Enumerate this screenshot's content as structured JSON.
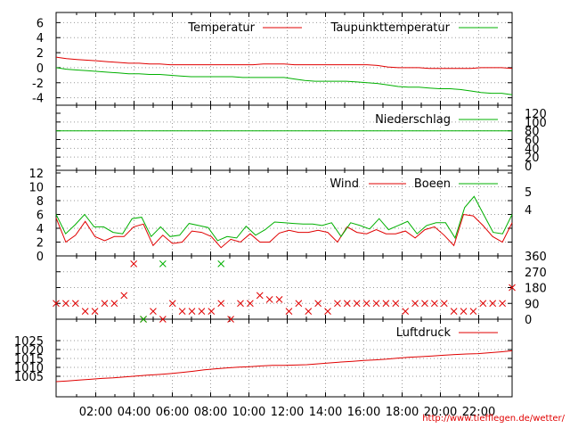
{
  "url_credit": "http://www.tiefflegen.de/wetter/",
  "x_ticks": [
    "02:00",
    "04:00",
    "06:00",
    "08:00",
    "10:00",
    "12:00",
    "14:00",
    "16:00",
    "18:00",
    "20:00",
    "22:00"
  ],
  "colors": {
    "red": "#e00000",
    "green": "#00b000"
  },
  "chart_data": [
    {
      "type": "line",
      "ylim": [
        -4.4,
        6.4
      ],
      "yticks": [
        "6",
        "4",
        "2",
        "0",
        "-2",
        "-4"
      ],
      "legend_position": "top-right",
      "series": [
        {
          "name": "Temperatur",
          "color": "#e00000",
          "values": [
            1.4,
            1.2,
            1.1,
            1.0,
            0.9,
            0.8,
            0.7,
            0.6,
            0.6,
            0.5,
            0.5,
            0.4,
            0.4,
            0.4,
            0.4,
            0.4,
            0.4,
            0.4,
            0.4,
            0.4,
            0.5,
            0.5,
            0.5,
            0.4,
            0.4,
            0.4,
            0.4,
            0.4,
            0.4,
            0.4,
            0.4,
            0.3,
            0.1,
            0.0,
            0.0,
            0.0,
            -0.1,
            -0.1,
            -0.1,
            -0.1,
            -0.1,
            0.0,
            0.0,
            0.0,
            -0.1
          ]
        },
        {
          "name": "Taupunkttemperatur",
          "color": "#00b000",
          "values": [
            0.0,
            -0.2,
            -0.3,
            -0.4,
            -0.5,
            -0.6,
            -0.7,
            -0.8,
            -0.8,
            -0.9,
            -0.9,
            -1.0,
            -1.1,
            -1.2,
            -1.2,
            -1.2,
            -1.2,
            -1.2,
            -1.3,
            -1.3,
            -1.3,
            -1.3,
            -1.3,
            -1.5,
            -1.7,
            -1.8,
            -1.8,
            -1.8,
            -1.8,
            -1.9,
            -2.0,
            -2.1,
            -2.3,
            -2.5,
            -2.6,
            -2.6,
            -2.7,
            -2.8,
            -2.8,
            -2.9,
            -3.1,
            -3.3,
            -3.4,
            -3.4,
            -3.6
          ]
        }
      ]
    },
    {
      "type": "line",
      "ylim": [
        0,
        120
      ],
      "yticks_right": [
        "120",
        "100",
        "80",
        "60",
        "40",
        "20",
        "0"
      ],
      "legend_position": "top-right",
      "series": [
        {
          "name": "Niederschlag",
          "color": "#00b000",
          "values": [
            80,
            80,
            80,
            80,
            80,
            80,
            80,
            80,
            80,
            80,
            80,
            80,
            80,
            80,
            80,
            80,
            80,
            80,
            80,
            80,
            80,
            80,
            80,
            80,
            80,
            80,
            80,
            80,
            80,
            80,
            80,
            80,
            80,
            80,
            80,
            80,
            80,
            80,
            80,
            80,
            80,
            80,
            80,
            80,
            80
          ]
        }
      ]
    },
    {
      "type": "line",
      "ylim": [
        0,
        12
      ],
      "yticks": [
        "12",
        "10",
        "8",
        "6",
        "4",
        "2",
        "0"
      ],
      "yticks_right": [
        "5",
        "4"
      ],
      "legend_position": "top-right",
      "series": [
        {
          "name": "Wind",
          "color": "#e00000",
          "values": [
            5.5,
            2.0,
            3.0,
            5.0,
            2.8,
            2.2,
            2.8,
            2.8,
            4.2,
            4.6,
            1.5,
            3.0,
            1.8,
            2.0,
            3.6,
            3.4,
            2.8,
            1.2,
            2.4,
            2.0,
            3.2,
            2.0,
            2.0,
            3.3,
            3.7,
            3.4,
            3.4,
            3.7,
            3.4,
            2.0,
            4.2,
            3.4,
            3.2,
            3.8,
            3.2,
            3.2,
            3.6,
            2.6,
            3.8,
            4.2,
            3.0,
            1.5,
            6.0,
            5.8,
            4.4,
            2.8,
            2.0,
            4.8
          ]
        },
        {
          "name": "Boeen",
          "color": "#00b000",
          "values": [
            6.0,
            3.2,
            4.5,
            6.0,
            4.2,
            4.2,
            3.4,
            3.2,
            5.4,
            5.6,
            2.8,
            4.2,
            2.8,
            3.0,
            4.7,
            4.4,
            4.1,
            2.2,
            2.8,
            2.6,
            4.3,
            3.0,
            3.8,
            4.9,
            4.8,
            4.7,
            4.6,
            4.6,
            4.4,
            4.8,
            2.8,
            4.8,
            4.4,
            3.9,
            5.4,
            3.8,
            4.4,
            5.0,
            3.2,
            4.4,
            4.8,
            4.8,
            2.6,
            7.0,
            8.6,
            6.0,
            3.4,
            3.2,
            6.0
          ]
        }
      ]
    },
    {
      "type": "scatter",
      "ylim": [
        0,
        360
      ],
      "yticks_right": [
        "360",
        "270",
        "180",
        "90",
        "0"
      ],
      "series": [
        {
          "name": "",
          "color": "#e00000",
          "points": [
            [
              0,
              90
            ],
            [
              1,
              90
            ],
            [
              2,
              90
            ],
            [
              3,
              45
            ],
            [
              4,
              45
            ],
            [
              5,
              90
            ],
            [
              6,
              90
            ],
            [
              7,
              135
            ],
            [
              8,
              315
            ],
            [
              9,
              0
            ],
            [
              10,
              45
            ],
            [
              11,
              0
            ],
            [
              12,
              90
            ],
            [
              13,
              45
            ],
            [
              14,
              45
            ],
            [
              15,
              45
            ],
            [
              16,
              45
            ],
            [
              17,
              90
            ],
            [
              18,
              0
            ],
            [
              19,
              90
            ],
            [
              20,
              90
            ],
            [
              21,
              135
            ],
            [
              22,
              112
            ],
            [
              23,
              112
            ],
            [
              24,
              45
            ],
            [
              25,
              90
            ],
            [
              26,
              45
            ],
            [
              27,
              90
            ],
            [
              28,
              45
            ],
            [
              29,
              90
            ],
            [
              30,
              90
            ],
            [
              31,
              90
            ],
            [
              32,
              90
            ],
            [
              33,
              90
            ],
            [
              34,
              90
            ],
            [
              35,
              90
            ],
            [
              36,
              45
            ],
            [
              37,
              90
            ],
            [
              38,
              90
            ],
            [
              39,
              90
            ],
            [
              40,
              90
            ],
            [
              41,
              45
            ],
            [
              42,
              45
            ],
            [
              43,
              45
            ],
            [
              44,
              90
            ],
            [
              45,
              90
            ],
            [
              46,
              90
            ],
            [
              47,
              180
            ]
          ]
        },
        {
          "name": "",
          "color": "#00b000",
          "points": [
            [
              9,
              0
            ],
            [
              11,
              315
            ],
            [
              17,
              315
            ]
          ]
        }
      ]
    },
    {
      "type": "line",
      "ylim": [
        1001,
        1026
      ],
      "yticks": [
        "1025",
        "1020",
        "1015",
        "1010",
        "1005"
      ],
      "legend_position": "top-right",
      "series": [
        {
          "name": "Luftdruck",
          "color": "#e00000",
          "values": [
            1002.0,
            1002.4,
            1002.9,
            1003.3,
            1003.8,
            1004.1,
            1004.6,
            1005.1,
            1005.6,
            1006.0,
            1006.5,
            1007.1,
            1007.8,
            1008.6,
            1009.2,
            1009.7,
            1010.1,
            1010.4,
            1010.8,
            1011.1,
            1011.1,
            1011.3,
            1011.5,
            1012.0,
            1012.5,
            1013.0,
            1013.4,
            1013.9,
            1014.2,
            1014.6,
            1015.2,
            1015.7,
            1016.0,
            1016.4,
            1016.8,
            1017.2,
            1017.5,
            1017.7,
            1018.2,
            1018.7,
            1019.3
          ]
        }
      ]
    }
  ]
}
